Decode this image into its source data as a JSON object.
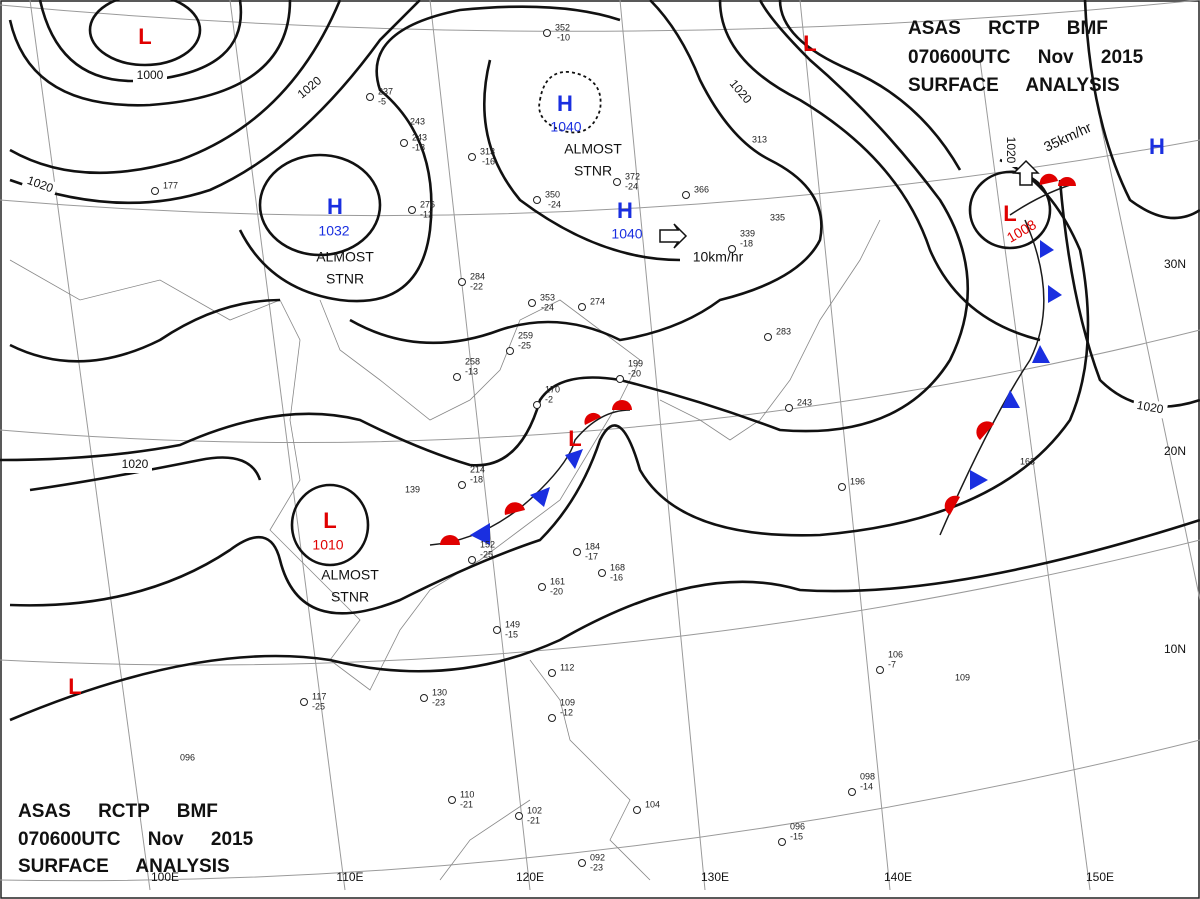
{
  "header_top": [
    "ASAS RCTP BMF",
    "070600UTC Nov 2015",
    "SURFACE ANALYSIS"
  ],
  "header_bottom": [
    "ASAS RCTP BMF",
    "070600UTC Nov 2015",
    "SURFACE ANALYSIS"
  ],
  "pressure_centers": [
    {
      "symbol": "L"
    },
    {
      "symbol": "H",
      "value": "1040"
    },
    {
      "symbol": "H",
      "value": "1032"
    },
    {
      "symbol": "H",
      "value": "1040"
    },
    {
      "symbol": "L"
    },
    {
      "symbol": "H"
    },
    {
      "symbol": "L",
      "value": "1008"
    },
    {
      "symbol": "L"
    },
    {
      "symbol": "L",
      "value": "1010"
    },
    {
      "symbol": "L"
    }
  ],
  "isobar_labels": [
    "1000",
    "1020",
    "1020",
    "1020",
    "1020",
    "1020",
    "1020"
  ],
  "notes": [
    [
      "ALMOST",
      "STNR"
    ],
    [
      "ALMOST",
      "STNR"
    ],
    [
      "ALMOST",
      "STNR"
    ]
  ],
  "motions": [
    "10km/hr",
    "35km/hr"
  ],
  "longitudes": [
    "100E",
    "110E",
    "120E",
    "130E",
    "140E",
    "150E"
  ],
  "latitudes": [
    "30N",
    "20N",
    "10N"
  ],
  "stations": [
    "352",
    "-10",
    "313",
    "-16",
    "350",
    "-24",
    "237",
    "-5",
    "243",
    "-18",
    "276",
    "-12",
    "284",
    "-22",
    "353",
    "-24",
    "274",
    "259",
    "-25",
    "258",
    "-13",
    "199",
    "-20",
    "170",
    "-2",
    "214",
    "-18",
    "152",
    "-25",
    "139",
    "184",
    "-17",
    "161",
    "-20",
    "168",
    "-16",
    "149",
    "-15",
    "130",
    "-23",
    "117",
    "-25",
    "112",
    "109",
    "-12",
    "096",
    "110",
    "-21",
    "102",
    "-21",
    "092",
    "-23",
    "104",
    "098",
    "-14",
    "096",
    "-15",
    "106",
    "-7",
    "109",
    "196",
    "163",
    "243",
    "339",
    "-18",
    "335",
    "366",
    "313",
    "372",
    "-24",
    "177",
    "243",
    "283"
  ]
}
